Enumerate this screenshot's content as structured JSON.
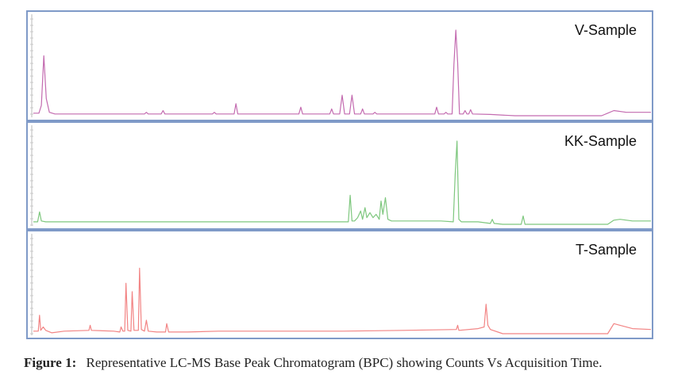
{
  "caption": {
    "figure_number": "Figure 1:",
    "text": "Representative LC-MS Base Peak Chromatogram (BPC) showing Counts Vs Acquisition Time."
  },
  "chart_data": [
    {
      "type": "line",
      "title": "V-Sample",
      "color": "#c36bb0",
      "x_range": [
        0,
        100
      ],
      "y_range": [
        0,
        100
      ],
      "grid": false,
      "points": [
        [
          0,
          3
        ],
        [
          0.9,
          3
        ],
        [
          1.3,
          12
        ],
        [
          1.7,
          70
        ],
        [
          2.1,
          20
        ],
        [
          2.6,
          4
        ],
        [
          3.5,
          2
        ],
        [
          18,
          2
        ],
        [
          18.3,
          4
        ],
        [
          18.6,
          2
        ],
        [
          20.7,
          2
        ],
        [
          21,
          6
        ],
        [
          21.3,
          2
        ],
        [
          29,
          2
        ],
        [
          29.3,
          4
        ],
        [
          29.6,
          2
        ],
        [
          32.5,
          2
        ],
        [
          32.8,
          14
        ],
        [
          33.1,
          2
        ],
        [
          43,
          2
        ],
        [
          43.3,
          10
        ],
        [
          43.6,
          2
        ],
        [
          48,
          2
        ],
        [
          48.3,
          8
        ],
        [
          48.6,
          2
        ],
        [
          49.6,
          2
        ],
        [
          50,
          24
        ],
        [
          50.4,
          2
        ],
        [
          51.2,
          2
        ],
        [
          51.6,
          24
        ],
        [
          52,
          2
        ],
        [
          53,
          2
        ],
        [
          53.3,
          8
        ],
        [
          53.6,
          2
        ],
        [
          55,
          2
        ],
        [
          55.3,
          4
        ],
        [
          55.6,
          2
        ],
        [
          65,
          2
        ],
        [
          65.3,
          10
        ],
        [
          65.6,
          2
        ],
        [
          66.5,
          2
        ],
        [
          66.8,
          4
        ],
        [
          67.1,
          2
        ],
        [
          67.8,
          2
        ],
        [
          68.1,
          60
        ],
        [
          68.4,
          100
        ],
        [
          68.7,
          62
        ],
        [
          69,
          2
        ],
        [
          69.6,
          2
        ],
        [
          69.9,
          6
        ],
        [
          70.2,
          2
        ],
        [
          70.5,
          2
        ],
        [
          70.8,
          7
        ],
        [
          71.1,
          2
        ],
        [
          74,
          1.5
        ],
        [
          78,
          0
        ],
        [
          92,
          0
        ],
        [
          93,
          3
        ],
        [
          94,
          6
        ],
        [
          96,
          4
        ],
        [
          100,
          4
        ]
      ]
    },
    {
      "type": "line",
      "title": "KK-Sample",
      "color": "#7ec77e",
      "x_range": [
        0,
        100
      ],
      "y_range": [
        0,
        100
      ],
      "grid": false,
      "points": [
        [
          0,
          3
        ],
        [
          0.7,
          3
        ],
        [
          1,
          15
        ],
        [
          1.3,
          4
        ],
        [
          2,
          3
        ],
        [
          20,
          3
        ],
        [
          40,
          3
        ],
        [
          50,
          3
        ],
        [
          51,
          3
        ],
        [
          51.3,
          35
        ],
        [
          51.6,
          4
        ],
        [
          52,
          4
        ],
        [
          52.5,
          8
        ],
        [
          53,
          16
        ],
        [
          53.3,
          6
        ],
        [
          53.7,
          20
        ],
        [
          54,
          8
        ],
        [
          54.5,
          14
        ],
        [
          55,
          8
        ],
        [
          55.5,
          12
        ],
        [
          56,
          6
        ],
        [
          56.3,
          28
        ],
        [
          56.6,
          12
        ],
        [
          57,
          32
        ],
        [
          57.4,
          6
        ],
        [
          58,
          4
        ],
        [
          66,
          4
        ],
        [
          68,
          3
        ],
        [
          68.3,
          60
        ],
        [
          68.6,
          100
        ],
        [
          68.9,
          6
        ],
        [
          69.3,
          3
        ],
        [
          72,
          3
        ],
        [
          74,
          1
        ],
        [
          74.3,
          6
        ],
        [
          74.6,
          1
        ],
        [
          76,
          0
        ],
        [
          79,
          0
        ],
        [
          79.3,
          10
        ],
        [
          79.6,
          0
        ],
        [
          93,
          0
        ],
        [
          94,
          5
        ],
        [
          95,
          6
        ],
        [
          97,
          4
        ],
        [
          100,
          4
        ]
      ]
    },
    {
      "type": "line",
      "title": "T-Sample",
      "color": "#f28484",
      "x_range": [
        0,
        100
      ],
      "y_range": [
        0,
        100
      ],
      "grid": false,
      "points": [
        [
          0,
          3
        ],
        [
          0.8,
          3
        ],
        [
          1,
          22
        ],
        [
          1.2,
          4
        ],
        [
          1.6,
          8
        ],
        [
          2,
          4
        ],
        [
          3,
          1
        ],
        [
          5,
          3
        ],
        [
          9,
          4
        ],
        [
          9.2,
          10
        ],
        [
          9.4,
          4
        ],
        [
          13,
          3
        ],
        [
          14,
          2
        ],
        [
          14.2,
          8
        ],
        [
          14.5,
          3
        ],
        [
          14.8,
          3
        ],
        [
          15,
          60
        ],
        [
          15.3,
          4
        ],
        [
          15.8,
          3
        ],
        [
          16,
          50
        ],
        [
          16.3,
          4
        ],
        [
          17,
          4
        ],
        [
          17.2,
          78
        ],
        [
          17.5,
          5
        ],
        [
          18,
          3
        ],
        [
          18.3,
          16
        ],
        [
          18.6,
          3
        ],
        [
          20,
          2
        ],
        [
          21.4,
          2
        ],
        [
          21.6,
          12
        ],
        [
          21.9,
          2
        ],
        [
          25,
          2
        ],
        [
          30,
          3
        ],
        [
          40,
          3
        ],
        [
          50,
          3
        ],
        [
          60,
          4
        ],
        [
          68.5,
          5
        ],
        [
          68.7,
          10
        ],
        [
          68.9,
          4
        ],
        [
          72,
          6
        ],
        [
          73,
          8
        ],
        [
          73.3,
          35
        ],
        [
          73.6,
          10
        ],
        [
          74,
          5
        ],
        [
          76,
          0
        ],
        [
          93,
          0
        ],
        [
          94,
          12
        ],
        [
          95,
          10
        ],
        [
          97,
          6
        ],
        [
          100,
          5
        ]
      ]
    }
  ]
}
